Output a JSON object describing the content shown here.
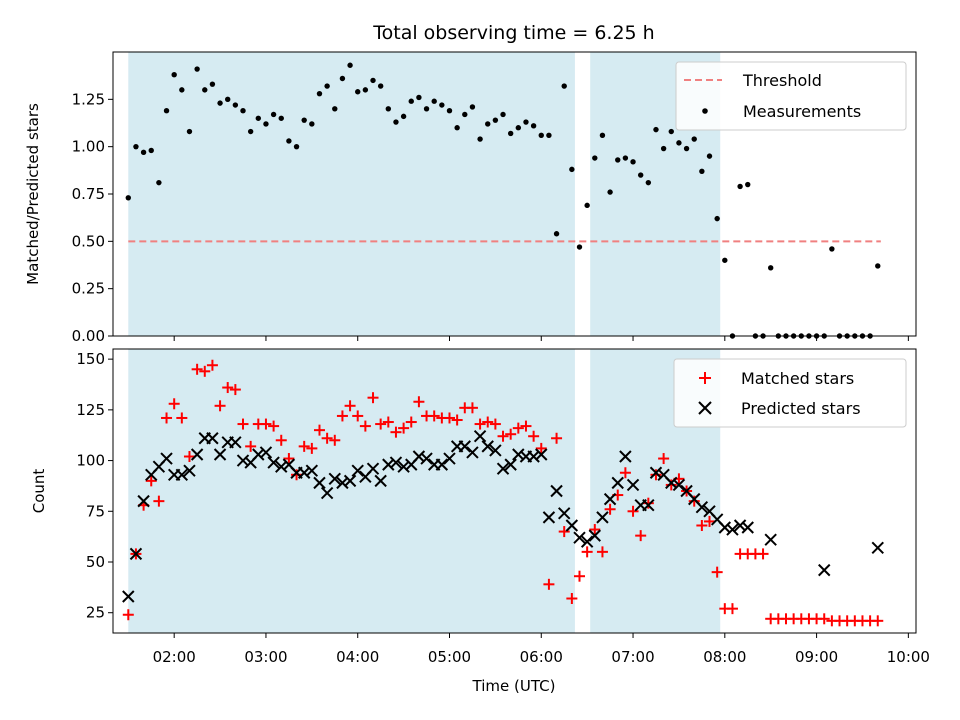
{
  "figure": {
    "title": "Total observing time = 6.25 h",
    "xlabel": "Time (UTC)",
    "xticks": [
      "02:00",
      "03:00",
      "04:00",
      "05:00",
      "06:00",
      "07:00",
      "08:00",
      "09:00",
      "10:00"
    ],
    "colors": {
      "shade": "#add8e6",
      "threshold": "#f08080",
      "matched": "#ff0000",
      "predicted": "#000000",
      "measurement": "#000000"
    }
  },
  "chart_data": [
    {
      "type": "scatter",
      "ylabel": "Matched/Predicted stars",
      "xlim": [
        "01:20",
        "10:05"
      ],
      "ylim": [
        0,
        1.5
      ],
      "yticks": [
        "0.00",
        "0.25",
        "0.50",
        "0.75",
        "1.00",
        "1.25"
      ],
      "shaded_intervals": [
        [
          "01:30",
          "06:22"
        ],
        [
          "06:32",
          "07:57"
        ]
      ],
      "threshold": {
        "name": "Threshold",
        "value": 0.5,
        "x_range": [
          "01:30",
          "09:42"
        ],
        "style": "dashed"
      },
      "legend": {
        "position": "top-right",
        "entries": [
          "Threshold",
          "Measurements"
        ]
      },
      "series": [
        {
          "name": "Measurements",
          "x": [
            "01:30",
            "01:35",
            "01:40",
            "01:45",
            "01:50",
            "01:55",
            "02:00",
            "02:05",
            "02:10",
            "02:15",
            "02:20",
            "02:25",
            "02:30",
            "02:35",
            "02:40",
            "02:45",
            "02:50",
            "02:55",
            "03:00",
            "03:05",
            "03:10",
            "03:15",
            "03:20",
            "03:25",
            "03:30",
            "03:35",
            "03:40",
            "03:45",
            "03:50",
            "03:55",
            "04:00",
            "04:05",
            "04:10",
            "04:15",
            "04:20",
            "04:25",
            "04:30",
            "04:35",
            "04:40",
            "04:45",
            "04:50",
            "04:55",
            "05:00",
            "05:05",
            "05:10",
            "05:15",
            "05:20",
            "05:25",
            "05:30",
            "05:35",
            "05:40",
            "05:45",
            "05:50",
            "05:55",
            "06:00",
            "06:05",
            "06:10",
            "06:15",
            "06:20",
            "06:25",
            "06:30",
            "06:35",
            "06:40",
            "06:45",
            "06:50",
            "06:55",
            "07:00",
            "07:05",
            "07:10",
            "07:15",
            "07:20",
            "07:25",
            "07:30",
            "07:35",
            "07:40",
            "07:45",
            "07:50",
            "07:55",
            "08:00",
            "08:05",
            "08:10",
            "08:15",
            "08:20",
            "08:25",
            "08:30",
            "08:35",
            "08:40",
            "08:45",
            "08:50",
            "08:55",
            "09:00",
            "09:05",
            "09:10",
            "09:15",
            "09:20",
            "09:25",
            "09:30",
            "09:35",
            "09:40"
          ],
          "values": [
            0.73,
            1.0,
            0.97,
            0.98,
            0.81,
            1.19,
            1.38,
            1.3,
            1.08,
            1.41,
            1.3,
            1.33,
            1.23,
            1.25,
            1.22,
            1.19,
            1.08,
            1.15,
            1.12,
            1.17,
            1.15,
            1.03,
            1.0,
            1.14,
            1.12,
            1.28,
            1.32,
            1.2,
            1.36,
            1.43,
            1.29,
            1.3,
            1.35,
            1.32,
            1.2,
            1.13,
            1.16,
            1.24,
            1.26,
            1.2,
            1.24,
            1.22,
            1.19,
            1.1,
            1.17,
            1.21,
            1.04,
            1.12,
            1.14,
            1.17,
            1.07,
            1.1,
            1.13,
            1.11,
            1.06,
            1.06,
            0.54,
            1.32,
            0.88,
            0.47,
            0.69,
            0.94,
            1.06,
            0.76,
            0.93,
            0.94,
            0.92,
            0.85,
            0.81,
            1.09,
            0.99,
            1.08,
            1.02,
            0.99,
            1.04,
            0.87,
            0.95,
            0.62,
            0.4,
            0.0,
            0.79,
            0.8,
            0.0,
            0.0,
            0.36,
            0.0,
            0.0,
            0.0,
            0.0,
            0.0,
            0.0,
            0.0,
            0.46,
            0.0,
            0.0,
            0.0,
            0.0,
            0.0,
            0.37
          ]
        }
      ]
    },
    {
      "type": "scatter",
      "ylabel": "Count",
      "xlim": [
        "01:20",
        "10:05"
      ],
      "ylim": [
        15,
        155
      ],
      "yticks": [
        "25",
        "50",
        "75",
        "100",
        "125",
        "150"
      ],
      "shaded_intervals": [
        [
          "01:30",
          "06:22"
        ],
        [
          "06:32",
          "07:57"
        ]
      ],
      "legend": {
        "position": "top-right",
        "entries": [
          "Matched stars",
          "Predicted stars"
        ]
      },
      "series": [
        {
          "name": "Matched stars",
          "marker": "+",
          "x": [
            "01:30",
            "01:35",
            "01:40",
            "01:45",
            "01:50",
            "01:55",
            "02:00",
            "02:05",
            "02:10",
            "02:15",
            "02:20",
            "02:25",
            "02:30",
            "02:35",
            "02:40",
            "02:45",
            "02:50",
            "02:55",
            "03:00",
            "03:05",
            "03:10",
            "03:15",
            "03:20",
            "03:25",
            "03:30",
            "03:35",
            "03:40",
            "03:45",
            "03:50",
            "03:55",
            "04:00",
            "04:05",
            "04:10",
            "04:15",
            "04:20",
            "04:25",
            "04:30",
            "04:35",
            "04:40",
            "04:45",
            "04:50",
            "04:55",
            "05:00",
            "05:05",
            "05:10",
            "05:15",
            "05:20",
            "05:25",
            "05:30",
            "05:35",
            "05:40",
            "05:45",
            "05:50",
            "05:55",
            "06:00",
            "06:05",
            "06:10",
            "06:15",
            "06:20",
            "06:25",
            "06:30",
            "06:35",
            "06:40",
            "06:45",
            "06:50",
            "06:55",
            "07:00",
            "07:05",
            "07:10",
            "07:15",
            "07:20",
            "07:25",
            "07:30",
            "07:35",
            "07:40",
            "07:45",
            "07:50",
            "07:55",
            "08:00",
            "08:05",
            "08:10",
            "08:15",
            "08:20",
            "08:25",
            "08:30",
            "08:35",
            "08:40",
            "08:45",
            "08:50",
            "08:55",
            "09:00",
            "09:05",
            "09:10",
            "09:15",
            "09:20",
            "09:25",
            "09:30",
            "09:35",
            "09:40"
          ],
          "values": [
            24,
            54,
            78,
            90,
            80,
            121,
            128,
            121,
            102,
            145,
            144,
            147,
            127,
            136,
            135,
            118,
            107,
            118,
            118,
            117,
            110,
            101,
            93,
            107,
            106,
            115,
            111,
            110,
            122,
            127,
            122,
            117,
            131,
            118,
            119,
            114,
            116,
            119,
            129,
            122,
            122,
            121,
            121,
            120,
            126,
            126,
            118,
            119,
            118,
            112,
            113,
            116,
            117,
            112,
            106,
            39,
            111,
            65,
            32,
            43,
            55,
            66,
            55,
            76,
            83,
            94,
            75,
            63,
            79,
            93,
            101,
            88,
            91,
            85,
            80,
            68,
            70,
            45,
            27,
            27,
            54,
            54,
            54,
            54,
            22,
            22,
            22,
            22,
            22,
            22,
            22,
            22,
            21,
            21,
            21,
            21,
            21,
            21,
            21
          ]
        },
        {
          "name": "Predicted stars",
          "marker": "x",
          "x": [
            "01:30",
            "01:35",
            "01:40",
            "01:45",
            "01:50",
            "01:55",
            "02:00",
            "02:05",
            "02:10",
            "02:15",
            "02:20",
            "02:25",
            "02:30",
            "02:35",
            "02:40",
            "02:45",
            "02:50",
            "02:55",
            "03:00",
            "03:05",
            "03:10",
            "03:15",
            "03:20",
            "03:25",
            "03:30",
            "03:35",
            "03:40",
            "03:45",
            "03:50",
            "03:55",
            "04:00",
            "04:05",
            "04:10",
            "04:15",
            "04:20",
            "04:25",
            "04:30",
            "04:35",
            "04:40",
            "04:45",
            "04:50",
            "04:55",
            "05:00",
            "05:05",
            "05:10",
            "05:15",
            "05:20",
            "05:25",
            "05:30",
            "05:35",
            "05:40",
            "05:45",
            "05:50",
            "05:55",
            "06:00",
            "06:05",
            "06:10",
            "06:15",
            "06:20",
            "06:25",
            "06:30",
            "06:35",
            "06:40",
            "06:45",
            "06:50",
            "06:55",
            "07:00",
            "07:05",
            "07:10",
            "07:15",
            "07:20",
            "07:25",
            "07:30",
            "07:35",
            "07:40",
            "07:45",
            "07:50",
            "07:55",
            "08:00",
            "08:05",
            "08:10",
            "08:15",
            "08:30",
            "09:05",
            "09:40"
          ],
          "values": [
            33,
            54,
            80,
            93,
            97,
            101,
            93,
            93,
            95,
            103,
            111,
            111,
            103,
            109,
            109,
            100,
            99,
            103,
            104,
            99,
            97,
            98,
            94,
            94,
            95,
            89,
            84,
            91,
            89,
            90,
            95,
            92,
            96,
            90,
            98,
            99,
            97,
            98,
            102,
            101,
            98,
            98,
            101,
            107,
            107,
            104,
            112,
            107,
            105,
            96,
            98,
            103,
            102,
            102,
            103,
            72,
            85,
            74,
            68,
            62,
            60,
            63,
            72,
            81,
            89,
            102,
            88,
            78,
            78,
            94,
            93,
            89,
            88,
            85,
            81,
            77,
            75,
            71,
            67,
            66,
            68,
            67,
            61,
            46,
            57
          ]
        }
      ]
    }
  ]
}
